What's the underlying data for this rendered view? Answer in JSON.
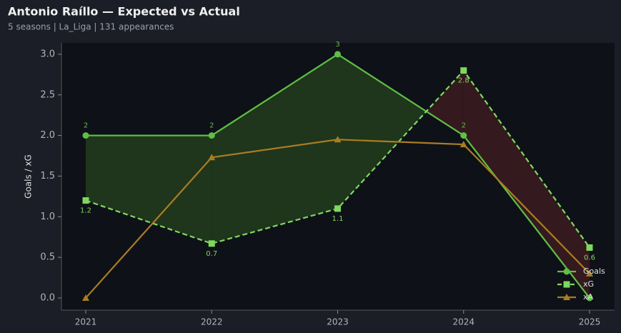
{
  "chart_data": {
    "type": "line",
    "title": "Antonio Raíllo — Expected vs Actual",
    "subtitle": "5 seasons | La_Liga | 131 appearances",
    "y_label": "Goals / xG",
    "categories": [
      "2021",
      "2022",
      "2023",
      "2024",
      "2025"
    ],
    "series": [
      {
        "name": "Goals",
        "color": "#5fbf45",
        "marker": "circle",
        "dash": false,
        "values": [
          2,
          2,
          3,
          2,
          0
        ],
        "value_labels": [
          "2",
          "2",
          "3",
          "2",
          null
        ]
      },
      {
        "name": "xG",
        "color": "#7ed85f",
        "marker": "square",
        "dash": true,
        "values": [
          1.2,
          0.67,
          1.1,
          2.8,
          0.62
        ],
        "value_labels": [
          "1.2",
          "0.7",
          "1.1",
          "2.8",
          "0.6"
        ]
      },
      {
        "name": "xA",
        "color": "#a87d22",
        "marker": "triangle",
        "dash": false,
        "values": [
          0,
          1.73,
          1.95,
          1.89,
          0.3
        ]
      }
    ],
    "fill_colors": {
      "over": "#2f5a22",
      "under": "#5a2226"
    },
    "ylim": [
      -0.15,
      3.14
    ],
    "yticks": [
      {
        "value": 0,
        "label": "0.0"
      },
      {
        "value": 0.5,
        "label": "0.5"
      },
      {
        "value": 1,
        "label": "1.0"
      },
      {
        "value": 1.5,
        "label": "1.5"
      },
      {
        "value": 2,
        "label": "2.0"
      },
      {
        "value": 2.5,
        "label": "2.5"
      },
      {
        "value": 3,
        "label": "3.0"
      }
    ],
    "grid": false,
    "legend": "lower right"
  }
}
